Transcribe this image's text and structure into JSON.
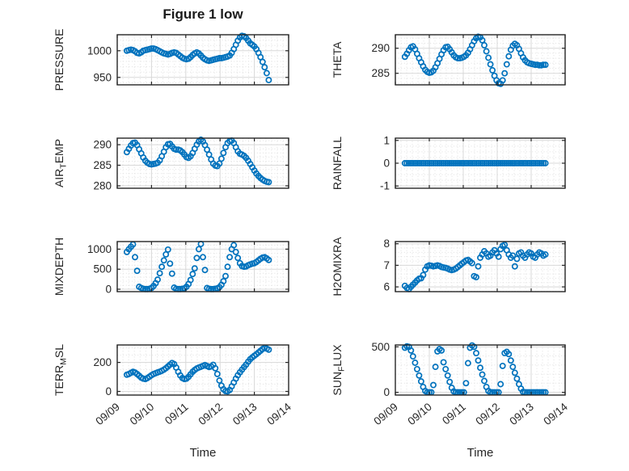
{
  "figure": {
    "title": "Figure 1 low",
    "xlabel": "Time",
    "marker": {
      "shape": "open-circle",
      "color": "#0072BD"
    },
    "colors": {
      "axis": "#262626",
      "text": "#262626",
      "grid_major": "#d8d8d8",
      "grid_minor": "#e0e0e0",
      "background": "#ffffff"
    },
    "x_axis": {
      "lim": [
        0,
        5
      ],
      "ticks": [
        0,
        1,
        2,
        3,
        4,
        5
      ],
      "tick_labels": [
        "09/09",
        "09/10",
        "09/11",
        "09/12",
        "09/13",
        "09/14"
      ],
      "minor_step": 0.1667
    },
    "x_days": [
      0.28,
      0.34,
      0.4,
      0.46,
      0.52,
      0.58,
      0.64,
      0.7,
      0.76,
      0.82,
      0.88,
      0.94,
      1.0,
      1.06,
      1.12,
      1.18,
      1.24,
      1.3,
      1.36,
      1.42,
      1.48,
      1.54,
      1.6,
      1.66,
      1.72,
      1.78,
      1.84,
      1.9,
      1.96,
      2.02,
      2.08,
      2.14,
      2.2,
      2.26,
      2.32,
      2.38,
      2.44,
      2.5,
      2.56,
      2.62,
      2.68,
      2.74,
      2.8,
      2.86,
      2.92,
      2.98,
      3.04,
      3.1,
      3.16,
      3.22,
      3.28,
      3.34,
      3.4,
      3.46,
      3.52,
      3.58,
      3.64,
      3.7,
      3.76,
      3.82,
      3.88,
      3.94,
      4.0,
      4.06,
      4.12,
      4.18,
      4.24,
      4.3,
      4.36,
      4.42
    ]
  },
  "chart_data": [
    {
      "type": "scatter",
      "id": "pressure",
      "ylabel": "PRESSURE",
      "ylabel_parts": [
        {
          "text": "PRESSURE",
          "sub": false
        }
      ],
      "ylim": [
        936,
        1030
      ],
      "yticks": [
        950,
        1000
      ],
      "yminor": 10,
      "show_x_labels": false,
      "values": [
        1000,
        1001,
        1002,
        1001,
        999,
        996,
        995,
        997,
        1000,
        1001,
        1002,
        1003,
        1004,
        1004,
        1003,
        1001,
        999,
        997,
        995,
        994,
        993,
        994,
        996,
        997,
        996,
        993,
        990,
        987,
        985,
        984,
        985,
        988,
        992,
        995,
        997,
        995,
        991,
        987,
        984,
        982,
        981,
        982,
        983,
        984,
        985,
        986,
        986,
        987,
        988,
        989,
        991,
        996,
        1003,
        1011,
        1019,
        1025,
        1028,
        1027,
        1024,
        1019,
        1014,
        1011,
        1008,
        1003,
        996,
        988,
        979,
        969,
        958,
        945
      ]
    },
    {
      "type": "scatter",
      "id": "theta",
      "ylabel": "THETA",
      "ylabel_parts": [
        {
          "text": "THETA",
          "sub": false
        }
      ],
      "ylim": [
        282.7,
        292.7
      ],
      "yticks": [
        285,
        290
      ],
      "yminor": 1,
      "show_x_labels": false,
      "values": [
        288.3,
        288.9,
        289.6,
        290.2,
        290.4,
        289.8,
        288.9,
        288.0,
        287.2,
        286.4,
        285.7,
        285.3,
        285.1,
        285.2,
        285.5,
        286.2,
        287.0,
        287.9,
        288.8,
        289.6,
        290.2,
        290.3,
        289.8,
        289.2,
        288.6,
        288.2,
        288.0,
        288.0,
        288.1,
        288.3,
        288.6,
        289.1,
        289.8,
        290.6,
        291.4,
        292.0,
        292.3,
        292.2,
        291.6,
        290.6,
        289.4,
        288.1,
        286.8,
        285.6,
        284.5,
        283.6,
        283.0,
        282.9,
        283.6,
        285.0,
        286.8,
        288.4,
        289.7,
        290.5,
        290.9,
        290.6,
        289.9,
        289.0,
        288.2,
        287.6,
        287.2,
        287.0,
        286.9,
        286.8,
        286.7,
        286.7,
        286.6,
        286.6,
        286.7,
        286.7
      ]
    },
    {
      "type": "scatter",
      "id": "air_temp",
      "ylabel": "AIR_TEMP",
      "ylabel_parts": [
        {
          "text": "AIR",
          "sub": false
        },
        {
          "text": "T",
          "sub": true
        },
        {
          "text": "EMP",
          "sub": false
        }
      ],
      "ylim": [
        279.4,
        291.6
      ],
      "yticks": [
        280,
        285,
        290
      ],
      "yminor": 1,
      "show_x_labels": false,
      "values": [
        288.2,
        289.0,
        289.8,
        290.4,
        290.5,
        289.9,
        288.9,
        287.9,
        286.9,
        286.1,
        285.6,
        285.3,
        285.2,
        285.3,
        285.4,
        285.6,
        286.2,
        287.2,
        288.3,
        289.4,
        290.1,
        290.2,
        289.6,
        289.0,
        288.8,
        288.8,
        288.6,
        288.2,
        287.6,
        287.0,
        286.8,
        287.2,
        288.0,
        289.0,
        290.0,
        290.8,
        291.2,
        290.8,
        289.9,
        288.8,
        287.6,
        286.4,
        285.4,
        284.9,
        284.8,
        285.4,
        286.6,
        288.0,
        289.4,
        290.4,
        290.9,
        291.0,
        290.4,
        289.4,
        288.4,
        287.8,
        287.6,
        287.3,
        286.8,
        286.1,
        285.3,
        284.5,
        283.7,
        283.0,
        282.4,
        281.9,
        281.5,
        281.2,
        281.0,
        280.9
      ]
    },
    {
      "type": "scatter",
      "id": "rainfall",
      "ylabel": "RAINFALL",
      "ylabel_parts": [
        {
          "text": "RAINFALL",
          "sub": false
        }
      ],
      "ylim": [
        -1.1,
        1.1
      ],
      "yticks": [
        -1,
        0,
        1
      ],
      "yminor": 0.25,
      "show_x_labels": false,
      "values": [
        0,
        0,
        0,
        0,
        0,
        0,
        0,
        0,
        0,
        0,
        0,
        0,
        0,
        0,
        0,
        0,
        0,
        0,
        0,
        0,
        0,
        0,
        0,
        0,
        0,
        0,
        0,
        0,
        0,
        0,
        0,
        0,
        0,
        0,
        0,
        0,
        0,
        0,
        0,
        0,
        0,
        0,
        0,
        0,
        0,
        0,
        0,
        0,
        0,
        0,
        0,
        0,
        0,
        0,
        0,
        0,
        0,
        0,
        0,
        0,
        0,
        0,
        0,
        0,
        0,
        0,
        0,
        0,
        0,
        0
      ]
    },
    {
      "type": "scatter",
      "id": "mixdepth",
      "ylabel": "MIXDEPTH",
      "ylabel_parts": [
        {
          "text": "MIXDEPTH",
          "sub": false
        }
      ],
      "ylim": [
        -60,
        1190
      ],
      "yticks": [
        0,
        500,
        1000
      ],
      "yminor": 100,
      "show_x_labels": false,
      "values": [
        930,
        1000,
        1060,
        1120,
        800,
        460,
        60,
        30,
        10,
        5,
        5,
        10,
        30,
        80,
        150,
        240,
        400,
        560,
        720,
        870,
        990,
        640,
        390,
        40,
        10,
        5,
        5,
        10,
        20,
        60,
        130,
        230,
        380,
        520,
        780,
        1000,
        1130,
        800,
        480,
        30,
        10,
        5,
        5,
        10,
        20,
        50,
        110,
        200,
        330,
        560,
        800,
        1000,
        1100,
        930,
        780,
        650,
        580,
        560,
        570,
        600,
        620,
        640,
        650,
        680,
        720,
        760,
        790,
        800,
        770,
        730
      ]
    },
    {
      "type": "scatter",
      "id": "h2omixra",
      "ylabel": "H2OMIXRA",
      "ylabel_parts": [
        {
          "text": "H2OMIXRA",
          "sub": false
        }
      ],
      "ylim": [
        5.78,
        8.1
      ],
      "yticks": [
        6,
        7,
        8
      ],
      "yminor": 0.2,
      "show_x_labels": false,
      "values": [
        6.05,
        5.95,
        5.9,
        6.0,
        6.1,
        6.2,
        6.3,
        6.38,
        6.4,
        6.55,
        6.8,
        6.95,
        7.0,
        6.98,
        6.95,
        6.97,
        7.0,
        6.97,
        6.92,
        6.9,
        6.88,
        6.85,
        6.8,
        6.78,
        6.8,
        6.85,
        6.92,
        7.0,
        7.08,
        7.15,
        7.22,
        7.25,
        7.18,
        7.1,
        6.5,
        6.45,
        6.95,
        7.35,
        7.5,
        7.65,
        7.55,
        7.4,
        7.45,
        7.6,
        7.7,
        7.55,
        7.4,
        7.75,
        7.9,
        7.95,
        7.7,
        7.5,
        7.35,
        7.45,
        6.95,
        7.3,
        7.55,
        7.6,
        7.45,
        7.35,
        7.5,
        7.6,
        7.55,
        7.4,
        7.35,
        7.5,
        7.6,
        7.55,
        7.45,
        7.5
      ]
    },
    {
      "type": "scatter",
      "id": "terr_msl",
      "ylabel": "TERR_MSL",
      "ylabel_parts": [
        {
          "text": "TERR",
          "sub": false
        },
        {
          "text": "M",
          "sub": true
        },
        {
          "text": "SL",
          "sub": false
        }
      ],
      "ylim": [
        -25,
        320
      ],
      "yticks": [
        0,
        200
      ],
      "yminor": 50,
      "show_x_labels": true,
      "values": [
        115,
        120,
        128,
        135,
        130,
        120,
        108,
        95,
        88,
        85,
        92,
        102,
        112,
        120,
        126,
        131,
        136,
        142,
        150,
        160,
        172,
        185,
        196,
        188,
        165,
        135,
        110,
        92,
        85,
        88,
        100,
        118,
        135,
        148,
        158,
        165,
        170,
        176,
        182,
        175,
        168,
        172,
        183,
        160,
        120,
        75,
        40,
        15,
        2,
        0,
        10,
        35,
        62,
        88,
        112,
        132,
        150,
        168,
        185,
        205,
        222,
        235,
        246,
        256,
        268,
        280,
        292,
        300,
        295,
        288
      ]
    },
    {
      "type": "scatter",
      "id": "sun_flux",
      "ylabel": "SUN_FLUX",
      "ylabel_parts": [
        {
          "text": "SUN",
          "sub": false
        },
        {
          "text": "F",
          "sub": true
        },
        {
          "text": "LUX",
          "sub": false
        }
      ],
      "ylim": [
        -30,
        520
      ],
      "yticks": [
        0,
        500
      ],
      "yminor": 100,
      "show_x_labels": true,
      "values": [
        490,
        505,
        500,
        460,
        395,
        325,
        255,
        185,
        120,
        60,
        15,
        0,
        0,
        0,
        80,
        280,
        450,
        475,
        460,
        330,
        255,
        185,
        115,
        50,
        10,
        0,
        0,
        0,
        0,
        0,
        100,
        320,
        490,
        515,
        500,
        430,
        350,
        270,
        195,
        125,
        60,
        15,
        0,
        0,
        0,
        0,
        0,
        90,
        290,
        430,
        445,
        420,
        350,
        280,
        215,
        150,
        90,
        40,
        5,
        0,
        0,
        0,
        0,
        0,
        0,
        0,
        0,
        0,
        0,
        0
      ]
    }
  ]
}
